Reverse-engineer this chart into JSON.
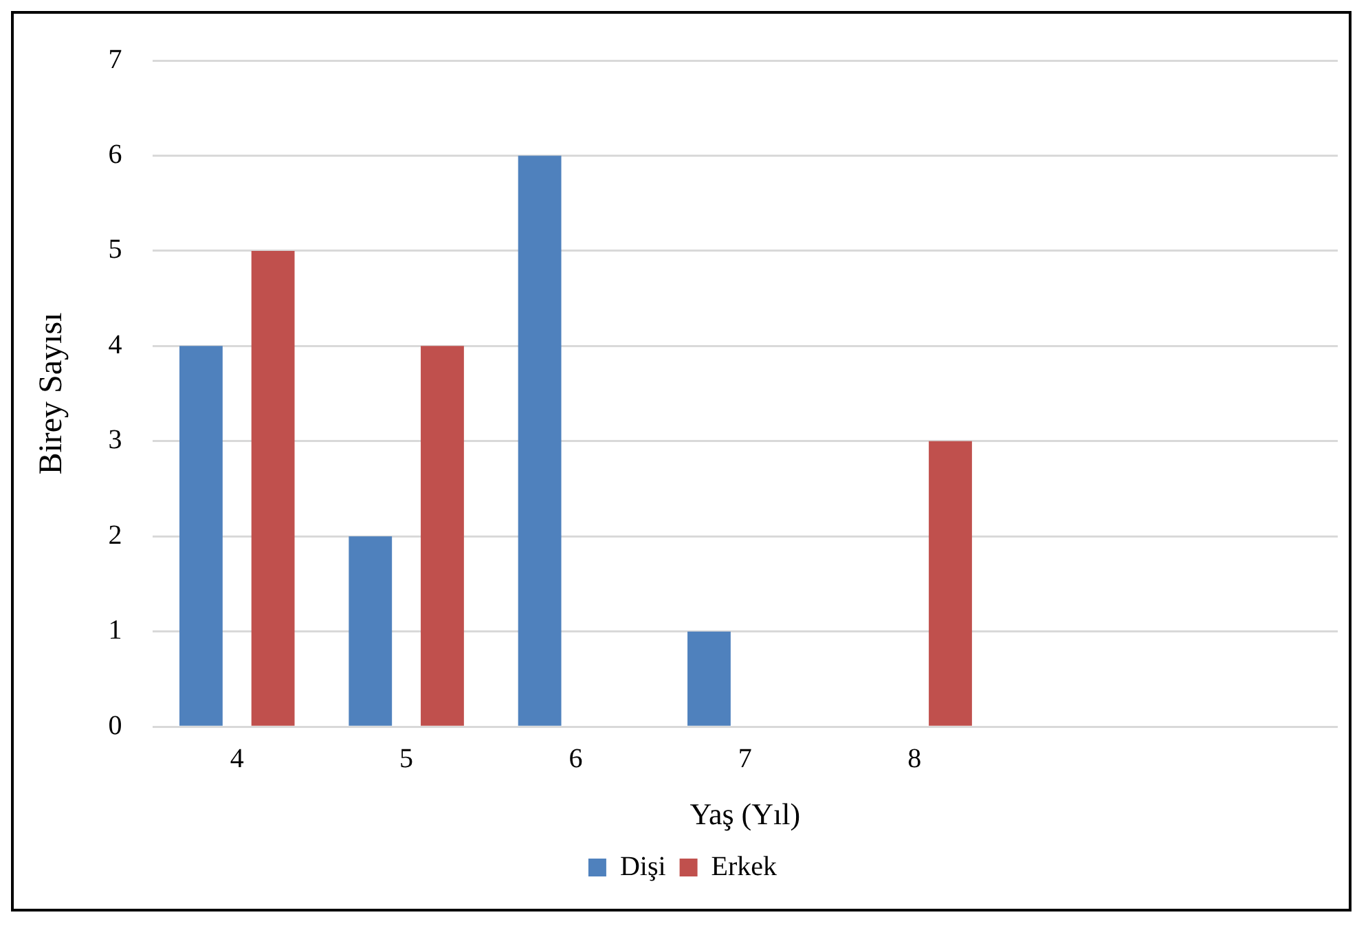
{
  "chart_data": {
    "type": "bar",
    "xlabel": "Yaş (Yıl)",
    "ylabel": "Birey Sayısı",
    "categories": [
      "4",
      "5",
      "6",
      "7",
      "8",
      null,
      null
    ],
    "series": [
      {
        "name": "Dişi",
        "color": "#4f81bd",
        "values": [
          4,
          2,
          6,
          1,
          0,
          null,
          null
        ]
      },
      {
        "name": "Erkek",
        "color": "#c0504d",
        "values": [
          5,
          4,
          0,
          0,
          3,
          null,
          null
        ]
      }
    ],
    "ylim": [
      0,
      7
    ],
    "yticks": [
      0,
      1,
      2,
      3,
      4,
      5,
      6,
      7
    ],
    "grid": "y",
    "legend": "bottom"
  }
}
